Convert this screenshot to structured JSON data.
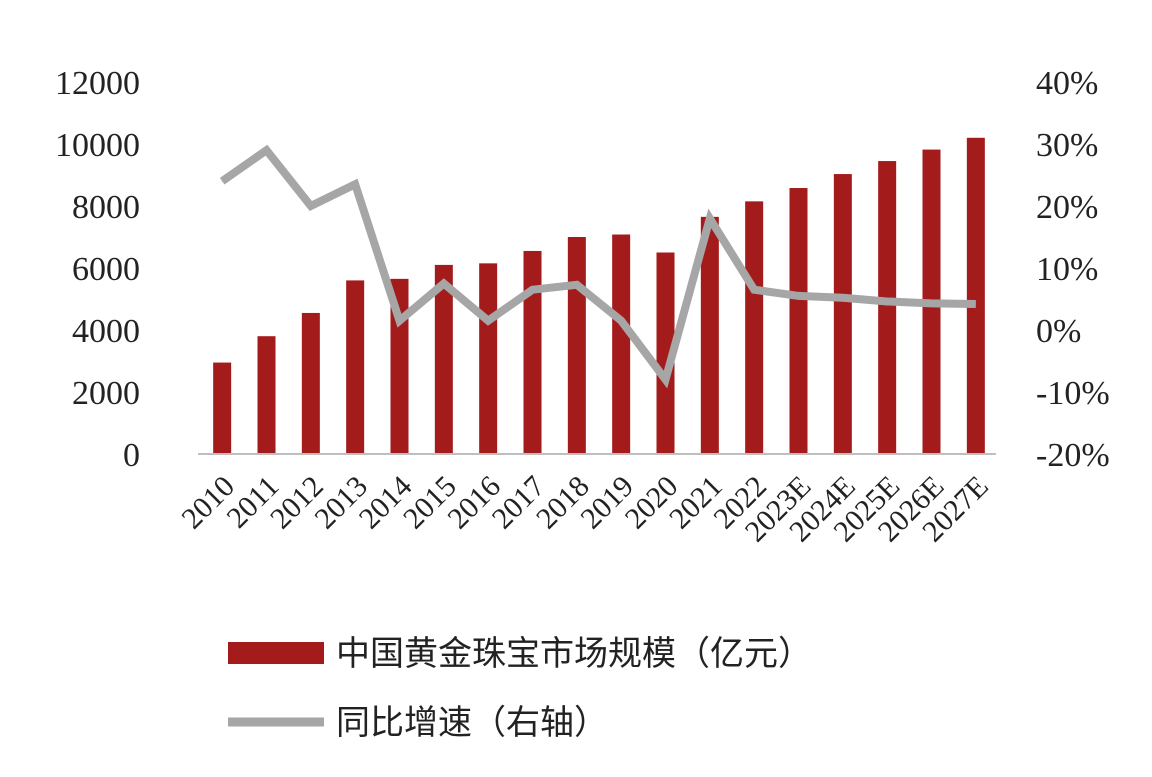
{
  "chart_data": {
    "type": "bar",
    "categories": [
      "2010",
      "2011",
      "2012",
      "2013",
      "2014",
      "2015",
      "2016",
      "2017",
      "2018",
      "2019",
      "2020",
      "2021",
      "2022",
      "2023E",
      "2024E",
      "2025E",
      "2026E",
      "2027E"
    ],
    "series": [
      {
        "name": "中国黄金珠宝市场规模（亿元）",
        "type": "bar",
        "axis": "left",
        "color": "#A31B1B",
        "values": [
          2950,
          3800,
          4550,
          5600,
          5650,
          6100,
          6150,
          6550,
          7000,
          7080,
          6500,
          7650,
          8150,
          8580,
          9030,
          9450,
          9820,
          10200
        ]
      },
      {
        "name": "同比增速（右轴）",
        "type": "line",
        "axis": "right",
        "color": "#A6A6A6",
        "values": [
          24,
          29,
          20,
          23.5,
          1.5,
          7.5,
          1.5,
          6.5,
          7.3,
          1.5,
          -8,
          18,
          6.5,
          5.5,
          5.2,
          4.6,
          4.3,
          4.2
        ]
      }
    ],
    "y_left": {
      "ylim": [
        0,
        12000
      ],
      "ticks": [
        "0",
        "2000",
        "4000",
        "6000",
        "8000",
        "10000",
        "12000"
      ]
    },
    "y_right": {
      "ylim": [
        -20,
        40
      ],
      "ticks": [
        "-20%",
        "-10%",
        "0%",
        "10%",
        "20%",
        "30%",
        "40%"
      ]
    },
    "grid": false,
    "legend_position": "bottom"
  }
}
